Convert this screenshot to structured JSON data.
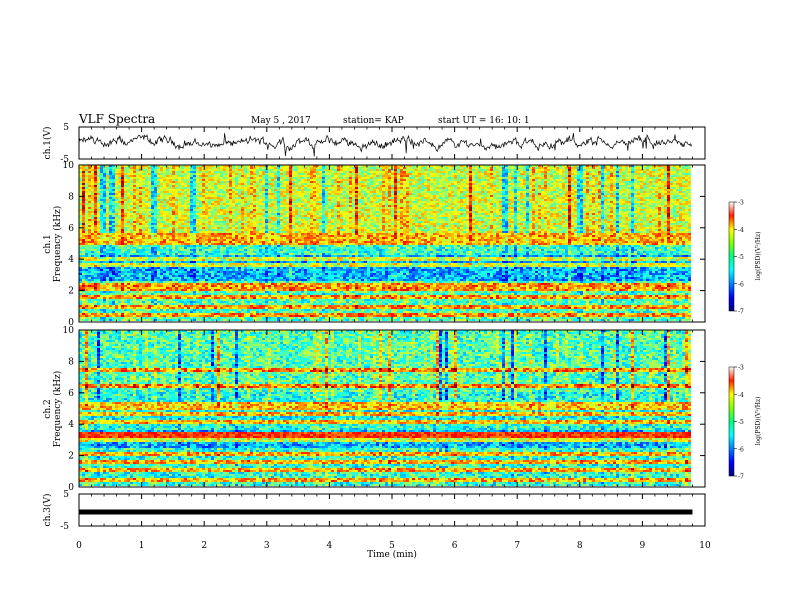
{
  "header": {
    "title": "VLF Spectra",
    "date": "May 5 , 2017",
    "station": "station= KAP",
    "start": "start UT = 16: 10: 1"
  },
  "chart_data": [
    {
      "type": "line",
      "panel": "ch1-waveform",
      "ylabel": "ch.1(V)",
      "yticks": [
        "5",
        "-5"
      ],
      "ylim": [
        -5,
        5
      ],
      "xlim": [
        0,
        10
      ],
      "trace_color": "#000000"
    },
    {
      "type": "heatmap",
      "panel": "ch1-spectrogram",
      "ylabel_lines": [
        "ch.1",
        "Frequency (kHz)"
      ],
      "ylim": [
        0,
        10
      ],
      "yticks": [
        "0",
        "2",
        "4",
        "6",
        "8",
        "10"
      ],
      "xlim": [
        0,
        9.8
      ],
      "colorbar": {
        "label": "log(PSD)(V²/Hz)",
        "ticks": [
          "-3",
          "-4",
          "-5",
          "-6",
          "-7"
        ],
        "range": [
          -7,
          -3
        ]
      },
      "bands_khz": [
        0.4,
        0.9,
        1.5,
        2.0,
        2.3,
        3.6,
        4.0,
        5.0,
        5.3,
        5.5
      ]
    },
    {
      "type": "heatmap",
      "panel": "ch2-spectrogram",
      "ylabel_lines": [
        "ch.2",
        "Frequency (kHz)"
      ],
      "ylim": [
        0,
        10
      ],
      "yticks": [
        "0",
        "2",
        "4",
        "6",
        "8",
        "10"
      ],
      "xlim": [
        0,
        9.8
      ],
      "colorbar": {
        "label": "log(PSD)(V²/Hz)",
        "ticks": [
          "-3",
          "-4",
          "-5",
          "-6",
          "-7"
        ],
        "range": [
          -7,
          -3
        ]
      },
      "bands_khz": [
        0.4,
        1.0,
        1.5,
        2.0,
        3.0,
        3.4,
        4.1,
        4.6,
        5.0,
        5.3,
        6.4,
        7.4
      ]
    },
    {
      "type": "line",
      "panel": "ch3-waveform",
      "ylabel": "ch.3(V)",
      "yticks": [
        "5",
        "-5"
      ],
      "ylim": [
        -5,
        5
      ],
      "xlim": [
        0,
        10
      ],
      "constant_value": 0,
      "trace_color": "#000000"
    }
  ],
  "xaxis": {
    "label": "Time (min)",
    "ticks": [
      "0",
      "1",
      "2",
      "3",
      "4",
      "5",
      "6",
      "7",
      "8",
      "9",
      "10"
    ],
    "range": [
      0,
      10
    ]
  }
}
